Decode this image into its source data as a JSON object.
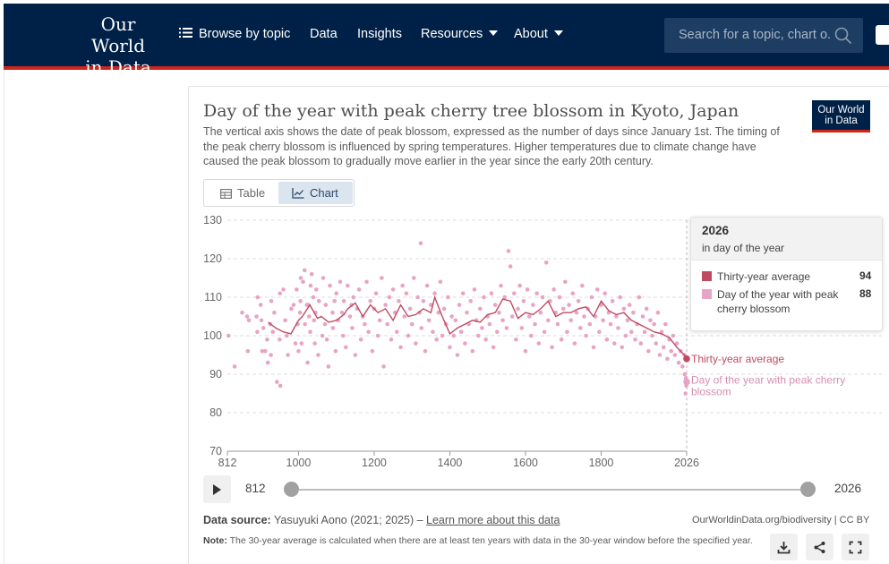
{
  "nav": {
    "logo_line1": "Our World",
    "logo_line2": "in Data",
    "browse": "Browse by topic",
    "data": "Data",
    "insights": "Insights",
    "resources": "Resources",
    "about": "About",
    "search_placeholder": "Search for a topic, chart o..."
  },
  "chart_header": {
    "title": "Day of the year with peak cherry tree blossom in Kyoto, Japan",
    "subtitle": "The vertical axis shows the date of peak blossom, expressed as the number of days since January 1st. The timing of the peak cherry blossom is influenced by spring temperatures. Higher temperatures due to climate change have caused the peak blossom to gradually move earlier in the year since the early 20th century.",
    "badge_line1": "Our World",
    "badge_line2": "in Data"
  },
  "tabs": {
    "table": "Table",
    "chart": "Chart"
  },
  "tooltip": {
    "year": "2026",
    "unit": "in day of the year",
    "rows": [
      {
        "label": "Thirty-year average",
        "value": "94",
        "color": "#bf4b62"
      },
      {
        "label": "Day of the year with peak cherry blossom",
        "value": "88",
        "color": "#e8a4c4"
      }
    ]
  },
  "timeline": {
    "start": "812",
    "end": "2026"
  },
  "footer": {
    "source_label": "Data source:",
    "source_text": "Yasuyuki Aono (2021; 2025) –",
    "learn_more": "Learn more about this data",
    "license": "OurWorldinData.org/biodiversity | CC BY",
    "note_label": "Note:",
    "note_text": "The 30-year average is calculated when there are at least ten years with data in the 30-year window before the specified year."
  },
  "colors": {
    "navy": "#002147",
    "red": "#ce261e",
    "line": "#bf4b62",
    "dots": "#e8a4c4"
  },
  "chart_data": {
    "type": "scatter",
    "title": "Day of the year with peak cherry tree blossom in Kyoto, Japan",
    "xlim": [
      812,
      2026
    ],
    "ylim": [
      70,
      130
    ],
    "x_ticks": [
      812,
      1000,
      1200,
      1400,
      1600,
      1800,
      2026
    ],
    "y_ticks": [
      70,
      80,
      90,
      100,
      110,
      120,
      130
    ],
    "series": [
      {
        "name": "Thirty-year average",
        "type": "line",
        "color": "#bf4b62",
        "x": [
          920,
          940,
          960,
          980,
          1000,
          1010,
          1030,
          1050,
          1060,
          1080,
          1100,
          1120,
          1130,
          1150,
          1170,
          1190,
          1210,
          1230,
          1250,
          1270,
          1290,
          1310,
          1330,
          1350,
          1360,
          1380,
          1400,
          1420,
          1440,
          1460,
          1480,
          1500,
          1520,
          1540,
          1560,
          1580,
          1600,
          1620,
          1640,
          1660,
          1680,
          1700,
          1720,
          1740,
          1760,
          1780,
          1800,
          1820,
          1840,
          1860,
          1880,
          1900,
          1920,
          1940,
          1960,
          1980,
          2000,
          2010,
          2020,
          2026
        ],
        "y": [
          103.5,
          102,
          101,
          100.5,
          104,
          105,
          108,
          104.5,
          105,
          103.5,
          104,
          105.5,
          107,
          108.5,
          105,
          108,
          106,
          107,
          104,
          108,
          105,
          105.5,
          107,
          106,
          110,
          105,
          100.5,
          102,
          103,
          104,
          103.5,
          105.5,
          106,
          109.5,
          109,
          104.5,
          106,
          105.5,
          107,
          109,
          105,
          106,
          106,
          107,
          107.5,
          105,
          109,
          106.5,
          105.5,
          106,
          104,
          103,
          102,
          101,
          100.5,
          99.5,
          97,
          96,
          95,
          94
        ]
      },
      {
        "name": "Day of the year with peak cherry blossom",
        "type": "scatter",
        "color": "#e8a4c4",
        "x": [
          815,
          831,
          851,
          864,
          866,
          869,
          889,
          891,
          892,
          900,
          902,
          904,
          907,
          912,
          917,
          919,
          925,
          927,
          928,
          932,
          936,
          943,
          950,
          951,
          952,
          960,
          965,
          969,
          972,
          981,
          987,
          992,
          995,
          998,
          1000,
          1004,
          1005,
          1006,
          1008,
          1012,
          1016,
          1017,
          1022,
          1024,
          1026,
          1028,
          1031,
          1032,
          1035,
          1039,
          1041,
          1043,
          1045,
          1047,
          1052,
          1054,
          1063,
          1065,
          1070,
          1072,
          1075,
          1079,
          1083,
          1090,
          1091,
          1095,
          1098,
          1100,
          1105,
          1110,
          1115,
          1118,
          1120,
          1125,
          1130,
          1136,
          1140,
          1142,
          1145,
          1150,
          1155,
          1160,
          1165,
          1170,
          1175,
          1180,
          1185,
          1190,
          1195,
          1200,
          1205,
          1210,
          1215,
          1220,
          1225,
          1230,
          1235,
          1240,
          1245,
          1250,
          1255,
          1260,
          1265,
          1270,
          1275,
          1280,
          1285,
          1290,
          1295,
          1300,
          1305,
          1310,
          1315,
          1320,
          1323,
          1325,
          1330,
          1335,
          1340,
          1345,
          1350,
          1355,
          1360,
          1365,
          1370,
          1375,
          1380,
          1385,
          1390,
          1395,
          1400,
          1405,
          1410,
          1415,
          1420,
          1425,
          1430,
          1435,
          1440,
          1445,
          1450,
          1455,
          1460,
          1465,
          1470,
          1475,
          1480,
          1485,
          1490,
          1495,
          1500,
          1505,
          1510,
          1515,
          1520,
          1525,
          1530,
          1535,
          1540,
          1545,
          1550,
          1555,
          1560,
          1565,
          1570,
          1575,
          1580,
          1585,
          1590,
          1595,
          1600,
          1605,
          1610,
          1615,
          1620,
          1625,
          1630,
          1635,
          1640,
          1645,
          1650,
          1655,
          1660,
          1665,
          1670,
          1675,
          1680,
          1685,
          1690,
          1695,
          1700,
          1705,
          1710,
          1715,
          1720,
          1725,
          1730,
          1735,
          1740,
          1745,
          1750,
          1755,
          1760,
          1765,
          1770,
          1775,
          1780,
          1785,
          1790,
          1795,
          1800,
          1805,
          1810,
          1815,
          1820,
          1825,
          1830,
          1835,
          1840,
          1845,
          1850,
          1855,
          1860,
          1865,
          1870,
          1875,
          1880,
          1885,
          1890,
          1895,
          1900,
          1905,
          1910,
          1915,
          1920,
          1925,
          1930,
          1935,
          1940,
          1945,
          1950,
          1955,
          1960,
          1965,
          1970,
          1975,
          1980,
          1985,
          1990,
          1995,
          2000,
          2005,
          2010,
          2015,
          2020,
          2021,
          2023,
          2024,
          2025,
          2026
        ],
        "y": [
          100,
          92,
          106,
          105,
          96,
          104,
          105,
          101,
          110,
          108,
          104,
          96,
          102,
          96,
          99,
          93,
          103,
          95,
          109,
          101,
          106,
          88,
          99,
          111,
          87,
          112,
          104,
          100,
          95,
          107,
          108,
          98,
          112,
          103,
          96,
          106,
          109,
          115,
          98,
          114,
          117,
          103,
          108,
          93,
          108,
          105,
          101,
          113,
          116,
          110,
          104,
          98,
          106,
          112,
          95,
          109,
          100,
          115,
          103,
          108,
          99,
          92,
          113,
          106,
          102,
          109,
          96,
          111,
          104,
          114,
          106,
          100,
          109,
          97,
          113,
          105,
          108,
          102,
          110,
          95,
          107,
          112,
          99,
          105,
          103,
          114,
          101,
          109,
          96,
          107,
          111,
          100,
          104,
          115,
          92,
          108,
          103,
          110,
          99,
          112,
          106,
          101,
          109,
          97,
          113,
          105,
          111,
          100,
          107,
          103,
          115,
          98,
          110,
          106,
          124,
          102,
          109,
          96,
          113,
          104,
          108,
          101,
          111,
          99,
          106,
          114,
          100,
          107,
          103,
          110,
          97,
          105,
          100,
          104,
          95,
          108,
          101,
          111,
          98,
          106,
          103,
          109,
          96,
          112,
          104,
          100,
          107,
          102,
          110,
          99,
          105,
          103,
          111,
          97,
          108,
          101,
          106,
          113,
          104,
          110,
          102,
          122,
          118,
          105,
          111,
          99,
          107,
          113,
          102,
          109,
          96,
          112,
          105,
          100,
          108,
          103,
          111,
          98,
          106,
          110,
          101,
          119,
          104,
          109,
          97,
          112,
          106,
          103,
          110,
          99,
          107,
          114,
          101,
          108,
          104,
          111,
          98,
          106,
          109,
          102,
          113,
          105,
          100,
          107,
          103,
          110,
          97,
          105,
          112,
          101,
          108,
          104,
          111,
          99,
          106,
          103,
          109,
          98,
          105,
          102,
          110,
          97,
          107,
          100,
          104,
          108,
          101,
          106,
          99,
          103,
          110,
          98,
          105,
          101,
          107,
          96,
          104,
          100,
          103,
          98,
          106,
          95,
          101,
          97,
          103,
          94,
          99,
          96,
          100,
          95,
          98,
          93,
          96,
          92,
          95,
          90,
          85,
          89,
          87,
          88
        ]
      }
    ]
  }
}
